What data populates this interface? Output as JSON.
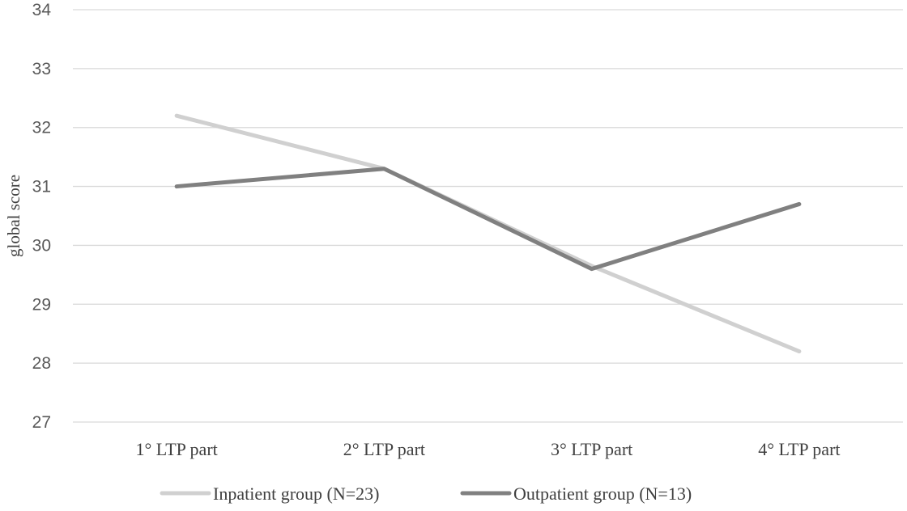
{
  "chart_data": {
    "type": "line",
    "title": "",
    "xlabel": "",
    "ylabel": "global score",
    "categories": [
      "1° LTP part",
      "2° LTP part",
      "3° LTP part",
      "4° LTP part"
    ],
    "ylim": [
      27,
      34
    ],
    "yticks": [
      27,
      28,
      29,
      30,
      31,
      32,
      33,
      34
    ],
    "grid": true,
    "legend_position": "bottom",
    "series": [
      {
        "name": "Inpatient group (N=23)",
        "values": [
          32.2,
          31.3,
          29.65,
          28.2
        ],
        "color": "#d0d0d0"
      },
      {
        "name": "Outpatient group (N=13)",
        "values": [
          31.0,
          31.3,
          29.6,
          30.7
        ],
        "color": "#808080"
      }
    ]
  }
}
